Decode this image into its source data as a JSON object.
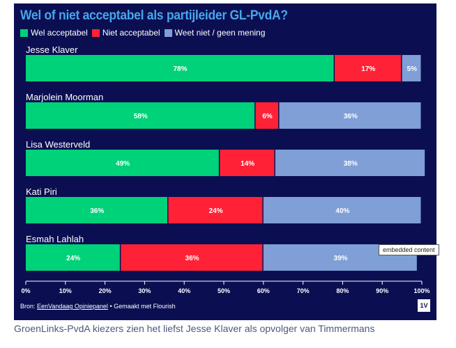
{
  "chart_data": {
    "type": "bar",
    "stacked": true,
    "orientation": "horizontal",
    "title": "Wel of niet acceptabel als partijleider GL-PvdA?",
    "categories": [
      "Jesse Klaver",
      "Marjolein Moorman",
      "Lisa Westerveld",
      "Kati Piri",
      "Esmah Lahlah"
    ],
    "series": [
      {
        "name": "Wel acceptabel",
        "color": "#00d27a",
        "values": [
          78,
          58,
          49,
          36,
          24
        ]
      },
      {
        "name": "Niet acceptabel",
        "color": "#ff2236",
        "values": [
          17,
          6,
          14,
          24,
          36
        ]
      },
      {
        "name": "Weet niet / geen mening",
        "color": "#7f9fd6",
        "values": [
          5,
          36,
          38,
          40,
          39
        ]
      }
    ],
    "xlim": [
      0,
      100
    ],
    "xticks": [
      "0%",
      "10%",
      "20%",
      "30%",
      "40%",
      "50%",
      "60%",
      "70%",
      "80%",
      "90%",
      "100%"
    ],
    "legend": "top-left",
    "grid": false
  },
  "footer": {
    "prefix": "Bron: ",
    "source_link": "EenVandaag Opiniepanel",
    "suffix": " • Gemaakt met Flourish",
    "logo": "1V"
  },
  "tooltip": "embedded content",
  "caption": "GroenLinks-PvdA kiezers zien het liefst Jesse Klaver als opvolger van Timmermans",
  "colors": {
    "background": "#0b0f52",
    "title": "#47a6ea"
  }
}
